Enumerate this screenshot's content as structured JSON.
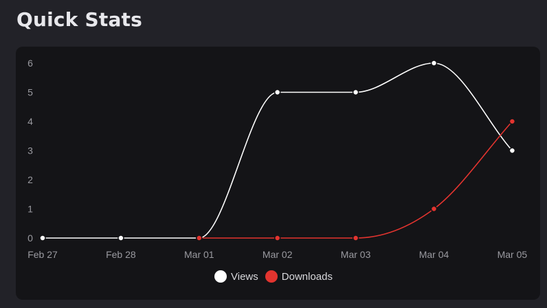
{
  "page": {
    "title": "Quick Stats"
  },
  "colors": {
    "background": "#222228",
    "card": "#141417",
    "views": "#ffffff",
    "downloads": "#e3342f",
    "axis_text": "#9a9aa0"
  },
  "chart_data": {
    "type": "line",
    "categories": [
      "Feb 27",
      "Feb 28",
      "Mar 01",
      "Mar 02",
      "Mar 03",
      "Mar 04",
      "Mar 05"
    ],
    "series": [
      {
        "name": "Views",
        "color": "#ffffff",
        "values": [
          0,
          0,
          0,
          5,
          5,
          6,
          3
        ]
      },
      {
        "name": "Downloads",
        "color": "#e3342f",
        "values": [
          null,
          null,
          0,
          0,
          0,
          1,
          4
        ]
      }
    ],
    "y_ticks": [
      "0",
      "1",
      "2",
      "3",
      "4",
      "5",
      "6"
    ],
    "ylim": [
      0,
      6
    ],
    "grid": false,
    "curve": "smooth",
    "legend_position": "bottom"
  }
}
